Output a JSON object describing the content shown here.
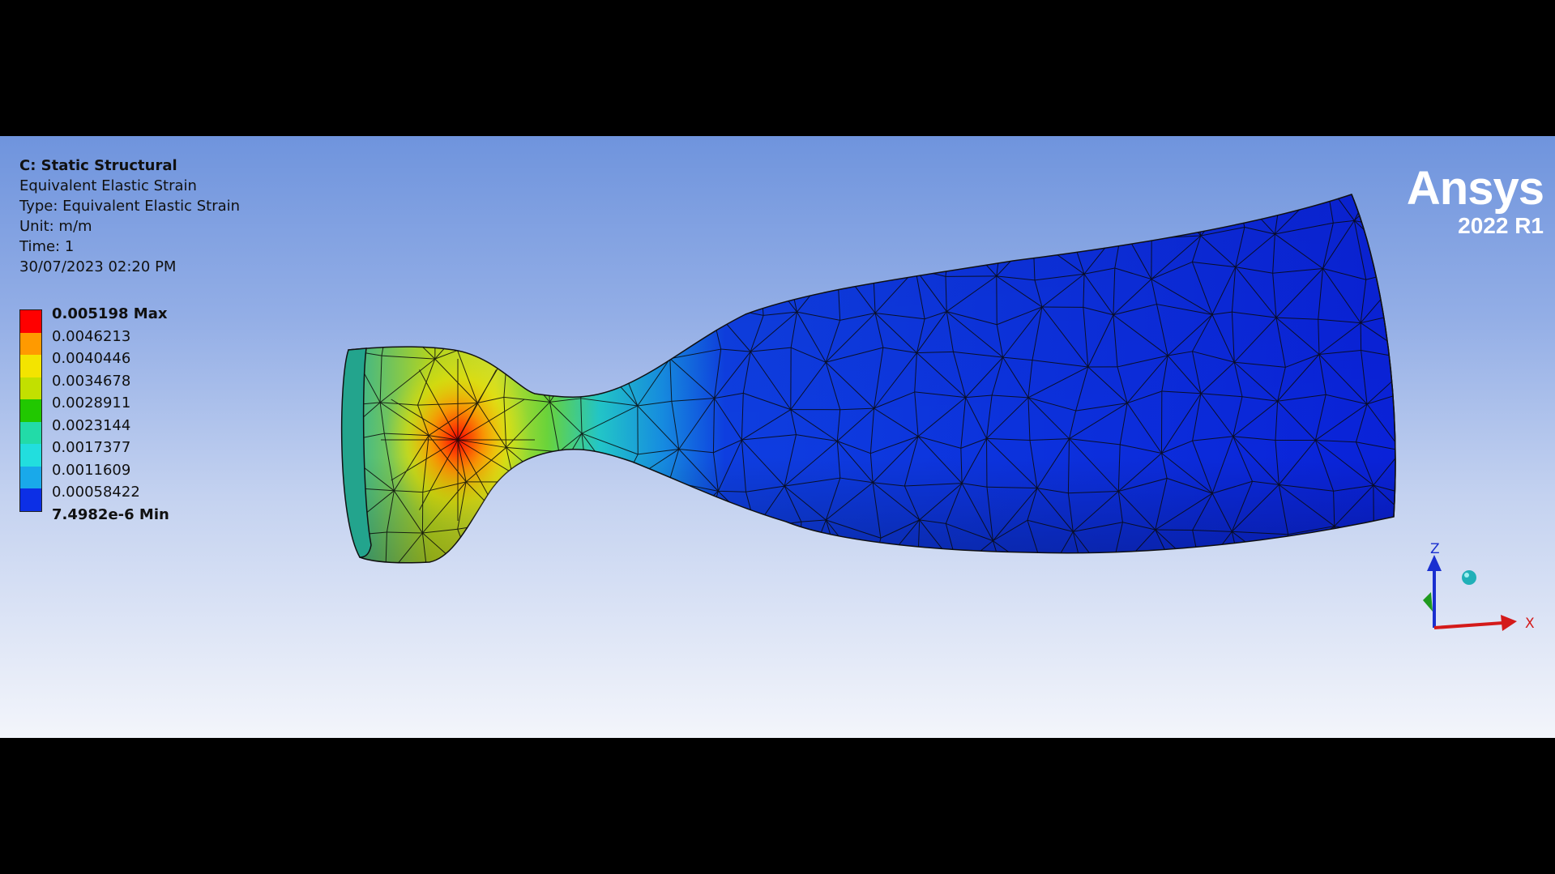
{
  "viewport": {
    "info": {
      "title": "C: Static Structural",
      "result": "Equivalent Elastic Strain",
      "type": "Type: Equivalent Elastic Strain",
      "unit": "Unit: m/m",
      "time": "Time: 1",
      "date": "30/07/2023 02:20 PM"
    },
    "legend": {
      "labels": [
        "0.005198 Max",
        "0.0046213",
        "0.0040446",
        "0.0034678",
        "0.0028911",
        "0.0023144",
        "0.0017377",
        "0.0011609",
        "0.00058422",
        "7.4982e-6 Min"
      ],
      "colors": [
        "#ff0000",
        "#ff9a00",
        "#f3e400",
        "#c2e000",
        "#21c800",
        "#22dba8",
        "#22dede",
        "#19a9ea",
        "#0c2fe6"
      ]
    },
    "brand": {
      "name": "Ansys",
      "version": "2022 R1"
    },
    "triad": {
      "z_label": "Z",
      "x_label": "X"
    }
  }
}
